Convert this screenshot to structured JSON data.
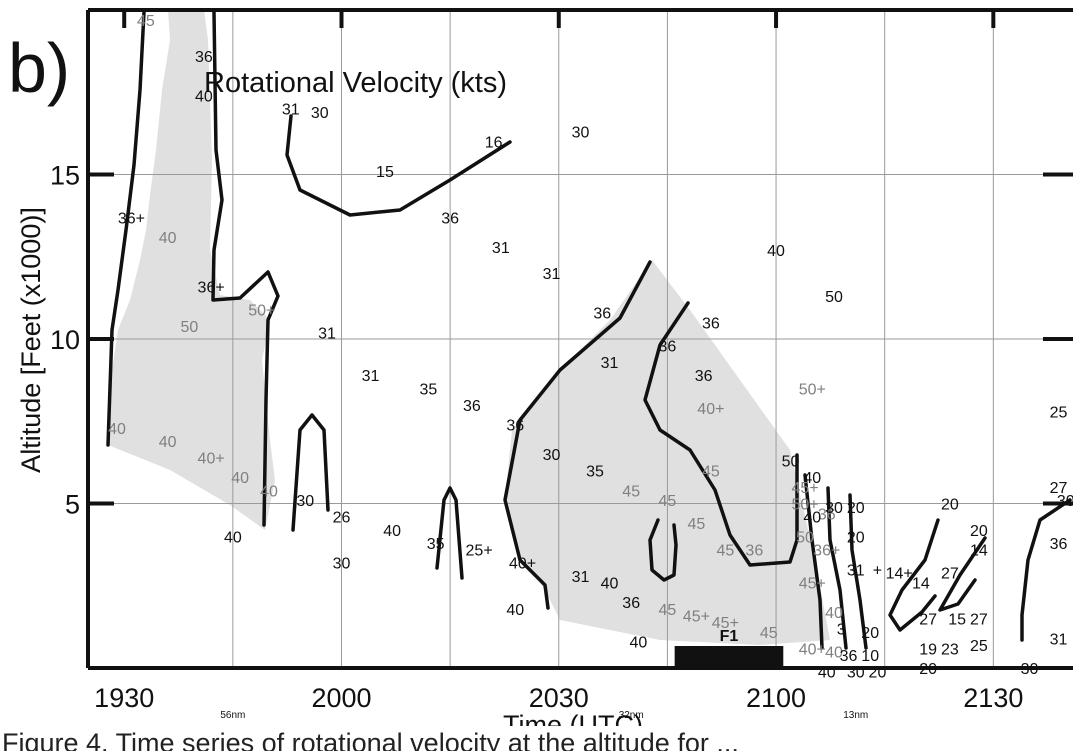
{
  "panel_label": "b)",
  "caption_fragment": "Figure 4. Time series of rotational velocity at the altitude for ...",
  "chart_data": {
    "type": "contour",
    "title": "Rotational Velocity (kts)",
    "xlabel": "Time (UTC)",
    "ylabel": "Altitude [Feet (x1000)]",
    "x_ticks": [
      "1930",
      "2000",
      "2030",
      "2100",
      "2130"
    ],
    "y_ticks": [
      "5",
      "10",
      "15"
    ],
    "xlim": [
      "1925",
      "2141"
    ],
    "ylim": [
      0,
      20
    ],
    "grid": true,
    "range_labels": [
      {
        "text": "56nm",
        "time": "1945"
      },
      {
        "text": "32nm",
        "time": "2040"
      },
      {
        "text": "13nm",
        "time": "2111"
      }
    ],
    "damage_bar": {
      "label": "F1",
      "start": "2046",
      "end": "2061"
    },
    "shaded_regions_fill": "#e0e0e0",
    "contour_color": "#111111",
    "labels_black": [
      [
        "1941",
        18.6,
        "36"
      ],
      [
        "1941",
        17.4,
        "40"
      ],
      [
        "1953",
        17.0,
        "31"
      ],
      [
        "1957",
        16.9,
        "30"
      ],
      [
        "2021",
        16.0,
        "16"
      ],
      [
        "2033",
        16.3,
        "30"
      ],
      [
        "2006",
        15.1,
        "15"
      ],
      [
        "1931",
        13.7,
        "36+"
      ],
      [
        "2015",
        13.7,
        "36"
      ],
      [
        "2022",
        12.8,
        "31"
      ],
      [
        "2029",
        12.0,
        "31"
      ],
      [
        "2036",
        10.8,
        "36"
      ],
      [
        "2051",
        10.5,
        "36"
      ],
      [
        "2060",
        12.7,
        "40"
      ],
      [
        "2068",
        11.3,
        "50"
      ],
      [
        "1942",
        11.6,
        "36+"
      ],
      [
        "1958",
        10.2,
        "31"
      ],
      [
        "2045",
        9.8,
        "36"
      ],
      [
        "2050",
        8.9,
        "36"
      ],
      [
        "1997",
        9.3,
        "31"
      ],
      [
        "2004",
        8.9,
        "31"
      ],
      [
        "2012",
        8.5,
        "35"
      ],
      [
        "2018",
        8.0,
        "36"
      ],
      [
        "2024",
        7.4,
        "36"
      ],
      [
        "2029",
        6.5,
        "30"
      ],
      [
        "2035",
        6.0,
        "35"
      ],
      [
        "1955",
        5.1,
        "30"
      ],
      [
        "1945",
        4.0,
        "40"
      ],
      [
        "2000",
        4.6,
        "26"
      ],
      [
        "2007",
        4.2,
        "40"
      ],
      [
        "2013",
        3.8,
        "35"
      ],
      [
        "2000",
        3.2,
        "30"
      ],
      [
        "2019",
        3.6,
        "25+"
      ],
      [
        "2025",
        3.2,
        "40+"
      ],
      [
        "2033",
        2.8,
        "31"
      ],
      [
        "2037",
        2.6,
        "40"
      ],
      [
        "2024",
        1.8,
        "40"
      ],
      [
        "2040",
        2.0,
        "36"
      ],
      [
        "2041",
        0.8,
        "40"
      ],
      [
        "2065",
        4.6,
        "40"
      ],
      [
        "2102",
        6.3,
        "50"
      ],
      [
        "2105",
        5.8,
        "40"
      ],
      [
        "2108",
        4.9,
        "30"
      ],
      [
        "2111",
        4.9,
        "20"
      ],
      [
        "2111",
        4.0,
        "20"
      ],
      [
        "2111",
        3.0,
        "31"
      ],
      [
        "2114",
        3.0,
        "+"
      ],
      [
        "2117",
        2.9,
        "14+"
      ],
      [
        "2120",
        2.6,
        "14"
      ],
      [
        "2124",
        2.9,
        "27"
      ],
      [
        "2128",
        3.6,
        "14"
      ],
      [
        "2128",
        4.2,
        "20"
      ],
      [
        "2124",
        5.0,
        "20"
      ],
      [
        "2121",
        1.5,
        "27"
      ],
      [
        "2125",
        1.5,
        "15"
      ],
      [
        "2128",
        1.5,
        "27"
      ],
      [
        "2109",
        1.2,
        "3"
      ],
      [
        "2113",
        1.1,
        "20"
      ],
      [
        "2110",
        0.4,
        "36"
      ],
      [
        "2113",
        0.4,
        "10"
      ],
      [
        "2121",
        0.6,
        "19"
      ],
      [
        "2124",
        0.6,
        "23"
      ],
      [
        "2128",
        0.7,
        "25"
      ],
      [
        "2121",
        0.0,
        "20"
      ],
      [
        "2107",
        -0.1,
        "40"
      ],
      [
        "2111",
        -0.1,
        "30"
      ],
      [
        "2114",
        -0.1,
        "20"
      ],
      [
        "2135",
        0.0,
        "30"
      ],
      [
        "2139",
        0.9,
        "31"
      ],
      [
        "2139",
        3.8,
        "36"
      ],
      [
        "2139",
        5.5,
        "27"
      ],
      [
        "2140",
        5.1,
        "30"
      ],
      [
        "2139",
        7.8,
        "25"
      ]
    ],
    "labels_grey": [
      [
        "1933",
        19.7,
        "45"
      ],
      [
        "1936",
        13.1,
        "40"
      ],
      [
        "1939",
        10.4,
        "50"
      ],
      [
        "1949",
        10.9,
        "50+"
      ],
      [
        "1929",
        7.3,
        "40"
      ],
      [
        "1936",
        6.9,
        "40"
      ],
      [
        "1942",
        6.4,
        "40+"
      ],
      [
        "1946",
        5.8,
        "40"
      ],
      [
        "1950",
        5.4,
        "40"
      ],
      [
        "2051",
        7.9,
        "40+"
      ],
      [
        "2065",
        8.5,
        "50+"
      ],
      [
        "2051",
        6.0,
        "45"
      ],
      [
        "2064",
        5.5,
        "45+"
      ],
      [
        "2040",
        5.4,
        "45"
      ],
      [
        "2045",
        5.1,
        "45"
      ],
      [
        "2049",
        4.4,
        "45"
      ],
      [
        "2053",
        3.6,
        "45"
      ],
      [
        "2057",
        3.6,
        "36"
      ],
      [
        "2045",
        1.8,
        "45"
      ],
      [
        "2049",
        1.6,
        "45+"
      ],
      [
        "2053",
        1.4,
        "45+"
      ],
      [
        "2059",
        1.1,
        "45"
      ],
      [
        "2104",
        5.0,
        "50+"
      ],
      [
        "2107",
        4.7,
        "36"
      ],
      [
        "2104",
        4.0,
        "50"
      ],
      [
        "2107",
        3.6,
        "36+"
      ],
      [
        "2105",
        2.6,
        "45+"
      ],
      [
        "2108",
        1.7,
        "40"
      ],
      [
        "2105",
        0.6,
        "40+"
      ],
      [
        "2108",
        0.5,
        "40"
      ]
    ]
  }
}
